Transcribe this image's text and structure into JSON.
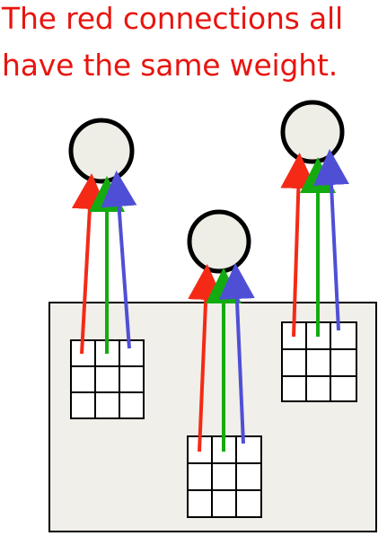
{
  "caption": {
    "line1": "The red connections all",
    "line2": "have the same weight."
  },
  "colors": {
    "caption_text": "#e8150f",
    "image_fill": "#f1efe9",
    "node_fill": "#eeede6",
    "outline": "#000000",
    "red_connection": "#f42a16",
    "green_connection": "#13ab10",
    "blue_connection": "#4f4fd6"
  },
  "diagram": {
    "units": [
      {
        "name": "left-unit"
      },
      {
        "name": "middle-unit"
      },
      {
        "name": "right-unit"
      }
    ],
    "filter_grid": {
      "rows": 3,
      "cols": 3
    },
    "connections": [
      "red",
      "green",
      "blue"
    ]
  }
}
